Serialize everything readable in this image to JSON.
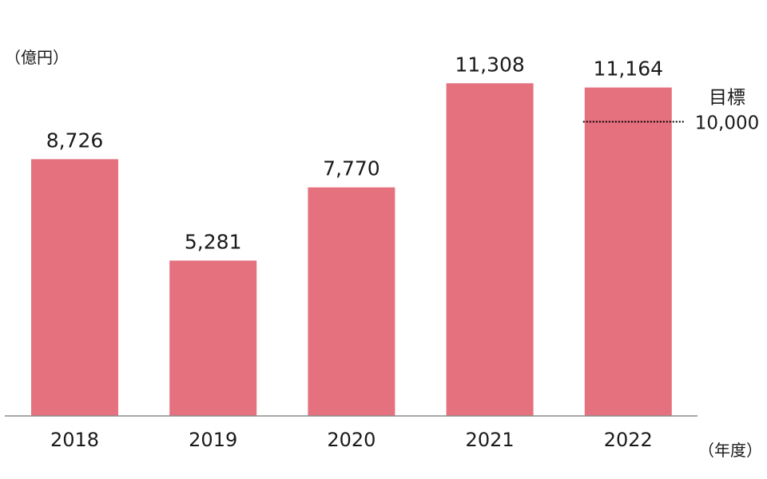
{
  "chart_data": {
    "type": "bar",
    "categories": [
      "2018",
      "2019",
      "2020",
      "2021",
      "2022"
    ],
    "values": [
      8726,
      5281,
      7770,
      11308,
      11164
    ],
    "value_labels": [
      "8,726",
      "5,281",
      "7,770",
      "11,308",
      "11,164"
    ],
    "y_unit_label": "（億円）",
    "x_unit_label": "（年度）",
    "target": {
      "label": "目標",
      "value": 10000,
      "value_label": "10,000",
      "category": "2022"
    },
    "ylim": [
      0,
      12000
    ],
    "grid": false,
    "legend": "none",
    "bar_color": "#e5707e",
    "axis_color": "#8c8c8c",
    "text_color": "#1a1a1a"
  }
}
